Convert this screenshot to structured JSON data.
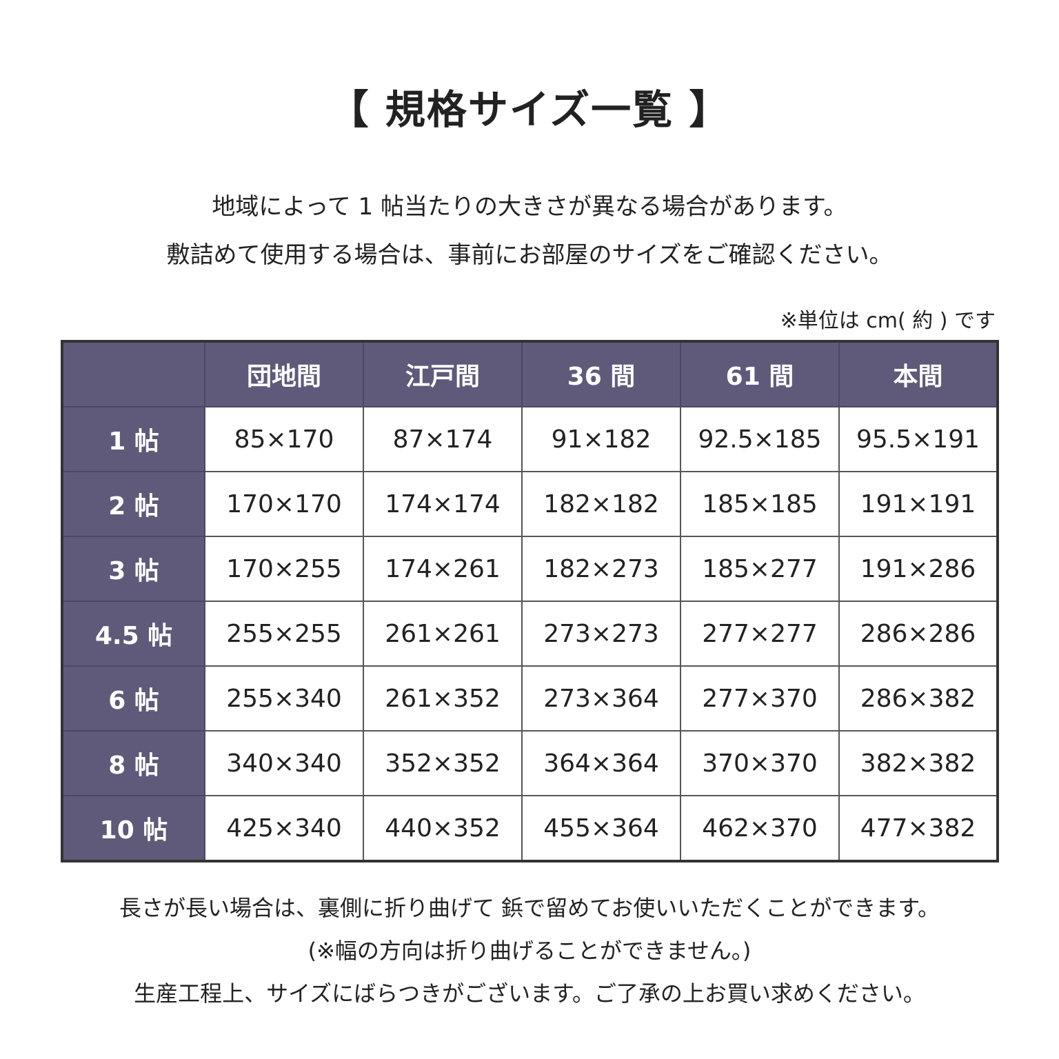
{
  "title": "【 規格サイズ一覧 】",
  "intro": [
    "地域によって 1 帖当たりの大きさが異なる場合があります。",
    "敷詰めて使用する場合は、事前にお部屋のサイズをご確認ください。"
  ],
  "unit_note": "※単位は cm( 約 ) です",
  "table": {
    "columns": [
      "",
      "団地間",
      "江戸間",
      "36 間",
      "61 間",
      "本間"
    ],
    "rows": [
      {
        "label": "1 帖",
        "values": [
          "85×170",
          "87×174",
          "91×182",
          "92.5×185",
          "95.5×191"
        ]
      },
      {
        "label": "2 帖",
        "values": [
          "170×170",
          "174×174",
          "182×182",
          "185×185",
          "191×191"
        ]
      },
      {
        "label": "3 帖",
        "values": [
          "170×255",
          "174×261",
          "182×273",
          "185×277",
          "191×286"
        ]
      },
      {
        "label": "4.5 帖",
        "values": [
          "255×255",
          "261×261",
          "273×273",
          "277×277",
          "286×286"
        ]
      },
      {
        "label": "6 帖",
        "values": [
          "255×340",
          "261×352",
          "273×364",
          "277×370",
          "286×382"
        ]
      },
      {
        "label": "8 帖",
        "values": [
          "340×340",
          "352×352",
          "364×364",
          "370×370",
          "382×382"
        ]
      },
      {
        "label": "10 帖",
        "values": [
          "425×340",
          "440×352",
          "455×364",
          "462×370",
          "477×382"
        ]
      }
    ]
  },
  "notes": [
    "長さが長い場合は、裏側に折り曲げて 鋲で留めてお使いいただくことができます。",
    "(※幅の方向は折り曲げることができません。)",
    "生産工程上、サイズにばらつきがございます。ご了承の上お買い求めください。"
  ],
  "colors": {
    "header_bg": "#5f5a7a",
    "text": "#222222"
  }
}
